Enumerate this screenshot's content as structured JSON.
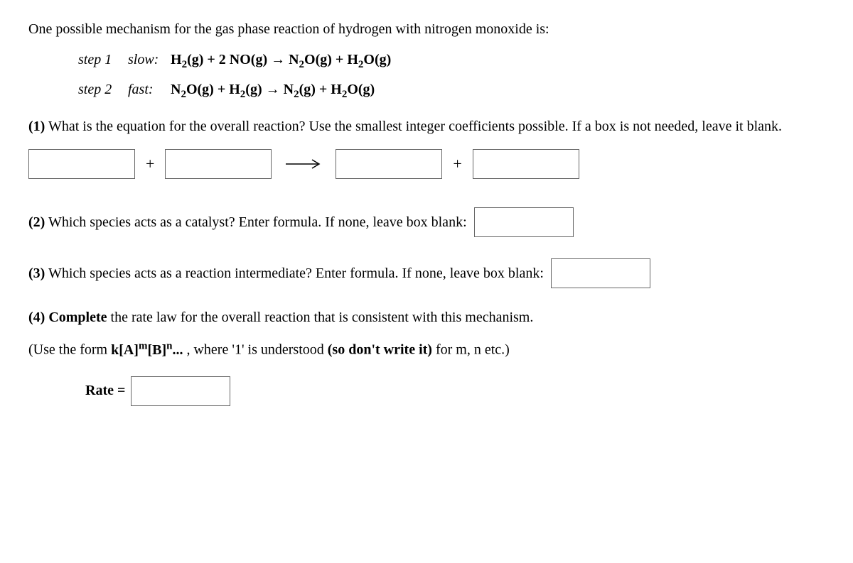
{
  "intro": "One possible mechanism for the gas phase reaction of hydrogen with nitrogen monoxide is:",
  "steps": {
    "s1": {
      "label": "step 1",
      "speed": "slow:",
      "eq_html": "H<sub>2</sub>(g) + 2 NO(g) → N<sub>2</sub>O(g) + H<sub>2</sub>O(g)"
    },
    "s2": {
      "label": "step 2",
      "speed": "fast:",
      "eq_html": "N<sub>2</sub>O(g) + H<sub>2</sub>(g) → N<sub>2</sub>(g) + H<sub>2</sub>O(g)"
    }
  },
  "q1": {
    "num": "(1)",
    "text": " What is the equation for the overall reaction? Use the smallest integer coefficients possible. If a box is not needed, leave it blank.",
    "plus": "+",
    "reactant1": "",
    "reactant2": "",
    "product1": "",
    "product2": ""
  },
  "q2": {
    "num": "(2)",
    "text": " Which species acts as a catalyst? Enter formula. If none, leave box blank:",
    "value": ""
  },
  "q3": {
    "num": "(3)",
    "text": " Which species acts as a reaction intermediate? Enter formula. If none, leave box blank:",
    "value": ""
  },
  "q4": {
    "num": "(4)",
    "complete": " Complete",
    "text": " the rate law for the overall reaction that is consistent with this mechanism.",
    "hint_pre": "(Use the form ",
    "hint_form_html": "k[A]<sup>m</sup>[B]<sup>n</sup>...",
    "hint_mid": " , where '1' is understood ",
    "hint_bold": "(so don't write it)",
    "hint_post": " for m, n etc.)",
    "rate_label": "Rate =",
    "rate_value": ""
  }
}
